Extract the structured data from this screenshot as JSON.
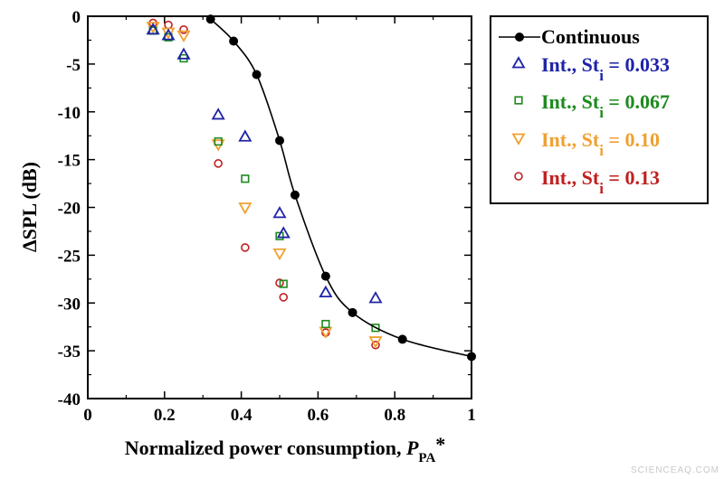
{
  "chart_data": {
    "type": "scatter",
    "title": "",
    "xlabel": "Normalized power consumption, P_PA*",
    "xlabel_parts": {
      "text": "Normalized power consumption, ",
      "symbol": "P",
      "subscript": "PA",
      "suffix": "*"
    },
    "ylabel": "ΔSPL (dB)",
    "xlim": [
      0,
      1
    ],
    "ylim": [
      -40,
      0
    ],
    "xticks": [
      0,
      0.2,
      0.4,
      0.6,
      0.8,
      1
    ],
    "xtick_labels": [
      "0",
      "0.2",
      "0.4",
      "0.6",
      "0.8",
      "1"
    ],
    "yticks": [
      0,
      -5,
      -10,
      -15,
      -20,
      -25,
      -30,
      -35,
      -40
    ],
    "ytick_labels": [
      "0",
      "-5",
      "-10",
      "-15",
      "-20",
      "-25",
      "-30",
      "-35",
      "-40"
    ],
    "grid": false,
    "legend_position": "outside-right",
    "series": [
      {
        "label_main": "Continuous",
        "label_sub": "",
        "label_suffix": "",
        "marker": "filled-circle",
        "line": true,
        "color": "#000000",
        "x": [
          0.32,
          0.38,
          0.44,
          0.5,
          0.54,
          0.62,
          0.69,
          0.82,
          1.0
        ],
        "y": [
          -0.3,
          -2.6,
          -6.1,
          -13.0,
          -18.7,
          -27.2,
          -31.0,
          -33.8,
          -35.6
        ]
      },
      {
        "label_main": "Int., St",
        "label_sub": "i",
        "label_suffix": " = 0.033",
        "marker": "triangle-up",
        "line": false,
        "color": "#1f24a8",
        "x": [
          0.17,
          0.21,
          0.25,
          0.34,
          0.41,
          0.5,
          0.51,
          0.62,
          0.75
        ],
        "y": [
          -1.4,
          -2.0,
          -4.0,
          -10.3,
          -12.6,
          -20.6,
          -22.7,
          -28.9,
          -29.5
        ]
      },
      {
        "label_main": "Int., St",
        "label_sub": "i",
        "label_suffix": " = 0.067",
        "marker": "square",
        "line": false,
        "color": "#1e8a1e",
        "x": [
          0.17,
          0.21,
          0.25,
          0.34,
          0.41,
          0.5,
          0.51,
          0.62,
          0.75
        ],
        "y": [
          -1.5,
          -2.2,
          -4.4,
          -13.1,
          -17.0,
          -23.0,
          -28.0,
          -32.2,
          -32.6
        ]
      },
      {
        "label_main": "Int., St",
        "label_sub": "i",
        "label_suffix": " = 0.10",
        "marker": "triangle-down",
        "line": false,
        "color": "#f0a030",
        "x": [
          0.17,
          0.21,
          0.25,
          0.34,
          0.41,
          0.5,
          0.62,
          0.75
        ],
        "y": [
          -1.1,
          -1.7,
          -2.0,
          -13.4,
          -20.0,
          -24.8,
          -33.0,
          -34.0
        ]
      },
      {
        "label_main": "Int., St",
        "label_sub": "i",
        "label_suffix": " = 0.13",
        "marker": "open-circle",
        "line": false,
        "color": "#c02020",
        "x": [
          0.17,
          0.21,
          0.25,
          0.34,
          0.41,
          0.5,
          0.51,
          0.62,
          0.75
        ],
        "y": [
          -0.7,
          -0.9,
          -1.4,
          -15.4,
          -24.2,
          -27.9,
          -29.4,
          -33.1,
          -34.4
        ]
      }
    ]
  },
  "watermark": "SCIENCEAQ.COM"
}
